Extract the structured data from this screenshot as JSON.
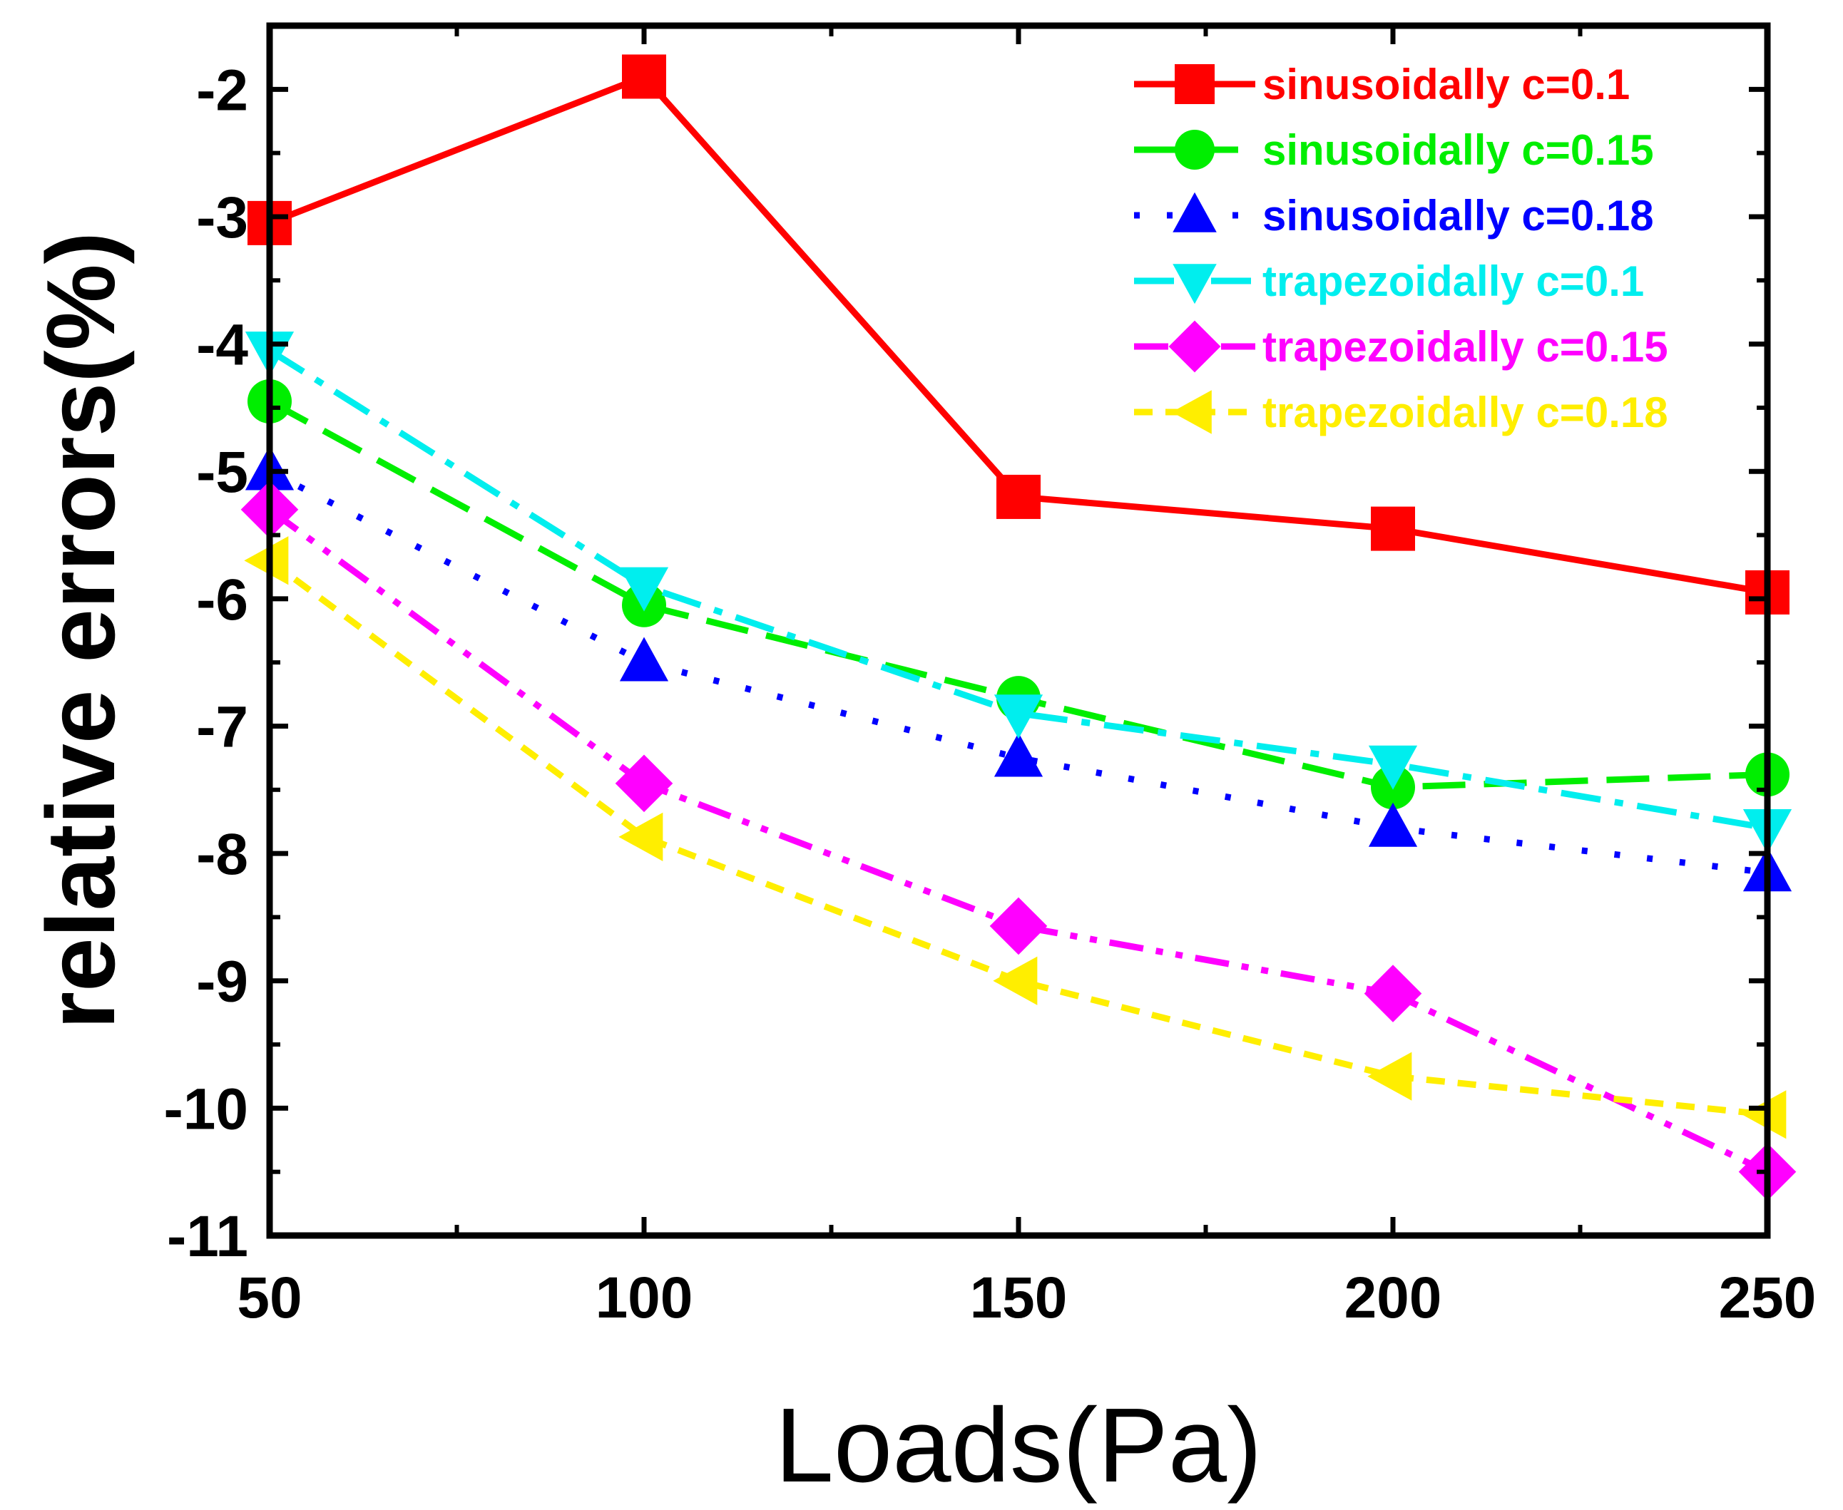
{
  "chart_data": {
    "type": "line",
    "title": "",
    "xlabel": "Loads(Pa)",
    "ylabel": "relative errors(%)",
    "xlim": [
      50,
      250
    ],
    "ylim": [
      -11,
      -1.5
    ],
    "xticks": [
      50,
      100,
      150,
      200,
      250
    ],
    "xtick_labels": [
      "50",
      "100",
      "150",
      "200",
      "250"
    ],
    "yticks": [
      -11,
      -10,
      -9,
      -8,
      -7,
      -6,
      -5,
      -4,
      -3,
      -2
    ],
    "ytick_labels": [
      "-11",
      "-10",
      "-9",
      "-8",
      "-7",
      "-6",
      "-5",
      "-4",
      "-3",
      "-2"
    ],
    "grid": false,
    "legend_position": "top-right",
    "x": [
      50,
      100,
      150,
      200,
      250
    ],
    "series": [
      {
        "name": "sinusoidally c=0.1",
        "color": "#ff0000",
        "marker": "square",
        "line": "solid",
        "values": [
          -3.05,
          -1.9,
          -5.2,
          -5.45,
          -5.95
        ]
      },
      {
        "name": "sinusoidally c=0.15",
        "color": "#00ee00",
        "marker": "circle",
        "line": "dash",
        "values": [
          -4.45,
          -6.05,
          -6.78,
          -7.48,
          -7.38
        ]
      },
      {
        "name": "sinusoidally c=0.18",
        "color": "#0000ff",
        "marker": "triangle-up",
        "line": "dot",
        "values": [
          -5.0,
          -6.5,
          -7.25,
          -7.8,
          -8.15
        ]
      },
      {
        "name": "trapezoidally c=0.1",
        "color": "#00eeee",
        "marker": "triangle-down",
        "line": "dashdot",
        "values": [
          -4.05,
          -5.9,
          -6.9,
          -7.3,
          -7.8
        ]
      },
      {
        "name": "trapezoidally c=0.15",
        "color": "#ff00ff",
        "marker": "diamond",
        "line": "dashdotdot",
        "values": [
          -5.3,
          -7.45,
          -8.57,
          -9.1,
          -10.5
        ]
      },
      {
        "name": "trapezoidally c=0.18",
        "color": "#ffee00",
        "marker": "triangle-left",
        "line": "shortdash",
        "values": [
          -5.7,
          -7.87,
          -9.0,
          -9.75,
          -10.05
        ]
      }
    ]
  }
}
